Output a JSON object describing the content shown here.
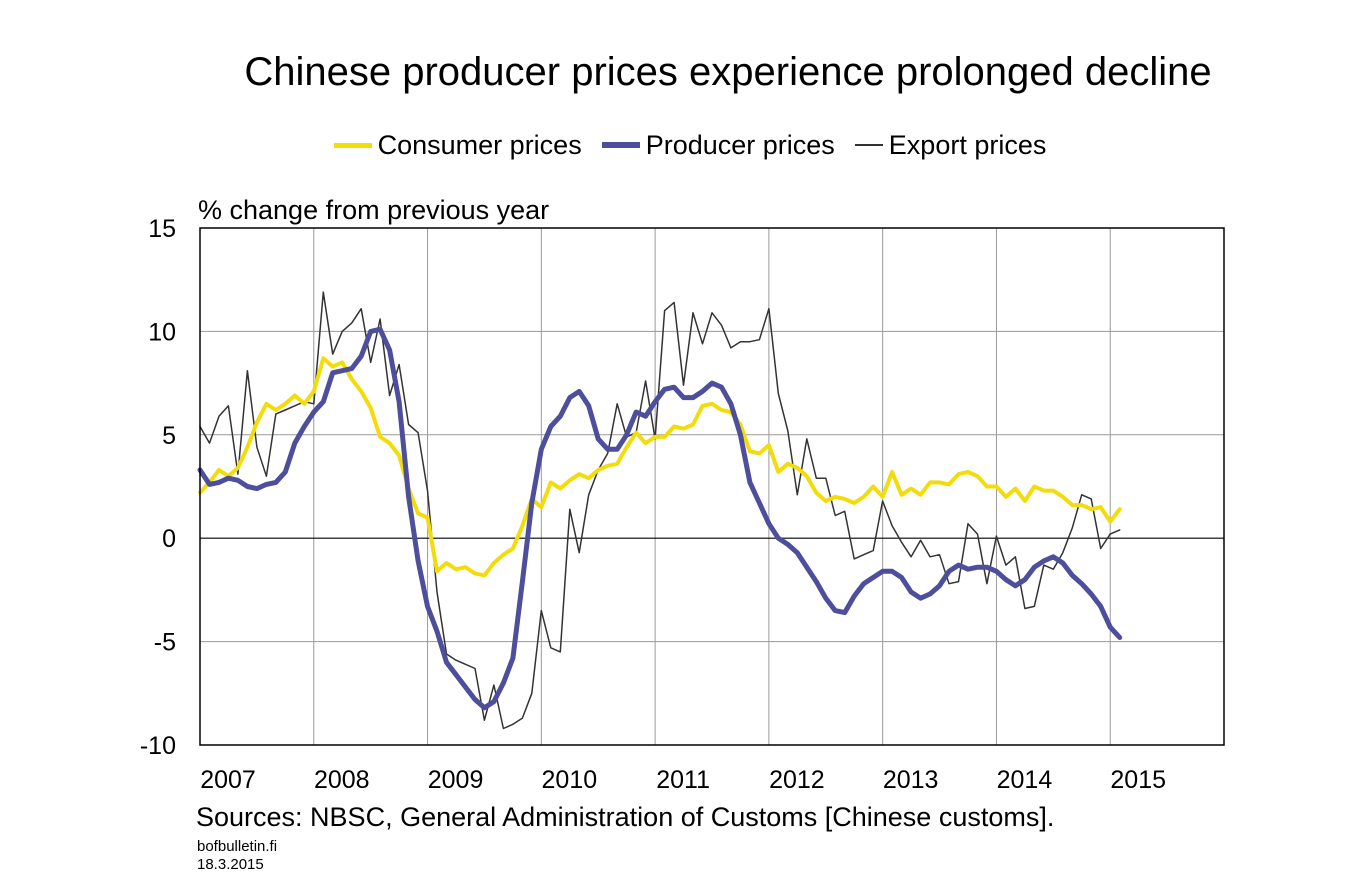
{
  "chart_data": {
    "type": "line",
    "title": "Chinese producer prices experience prolonged decline",
    "ylabel": "% change from previous year",
    "xlabel": "",
    "ylim": [
      -10,
      15
    ],
    "yticks": [
      "15",
      "10",
      "5",
      "0",
      "-5",
      "-10"
    ],
    "ytick_values": [
      15,
      10,
      5,
      0,
      -5,
      -10
    ],
    "xlim": [
      2007,
      2016
    ],
    "xticks": [
      "2007",
      "2008",
      "2009",
      "2010",
      "2011",
      "2012",
      "2013",
      "2014",
      "2015"
    ],
    "xtick_values": [
      2007,
      2008,
      2009,
      2010,
      2011,
      2012,
      2013,
      2014,
      2015
    ],
    "grid": true,
    "legend_position": "top-center",
    "series": [
      {
        "name": "Consumer prices",
        "color": "#f2dc0a",
        "width": 4,
        "x_start": 2007.0,
        "step": 0.08333,
        "values": [
          2.2,
          2.7,
          3.3,
          3.0,
          3.4,
          4.4,
          5.6,
          6.5,
          6.2,
          6.5,
          6.9,
          6.5,
          7.1,
          8.7,
          8.3,
          8.5,
          7.7,
          7.1,
          6.3,
          4.9,
          4.6,
          4.0,
          2.4,
          1.2,
          1.0,
          -1.6,
          -1.2,
          -1.5,
          -1.4,
          -1.7,
          -1.8,
          -1.2,
          -0.8,
          -0.5,
          0.6,
          1.9,
          1.5,
          2.7,
          2.4,
          2.8,
          3.1,
          2.9,
          3.3,
          3.5,
          3.6,
          4.4,
          5.1,
          4.6,
          4.9,
          4.9,
          5.4,
          5.3,
          5.5,
          6.4,
          6.5,
          6.2,
          6.1,
          5.5,
          4.2,
          4.1,
          4.5,
          3.2,
          3.6,
          3.4,
          3.0,
          2.2,
          1.8,
          2.0,
          1.9,
          1.7,
          2.0,
          2.5,
          2.0,
          3.2,
          2.1,
          2.4,
          2.1,
          2.7,
          2.7,
          2.6,
          3.1,
          3.2,
          3.0,
          2.5,
          2.5,
          2.0,
          2.4,
          1.8,
          2.5,
          2.3,
          2.3,
          2.0,
          1.6,
          1.6,
          1.4,
          1.5,
          0.8,
          1.4
        ]
      },
      {
        "name": "Producer prices",
        "color": "#4d4e9c",
        "width": 5,
        "x_start": 2007.0,
        "step": 0.08333,
        "values": [
          3.3,
          2.6,
          2.7,
          2.9,
          2.8,
          2.5,
          2.4,
          2.6,
          2.7,
          3.2,
          4.6,
          5.4,
          6.1,
          6.6,
          8.0,
          8.1,
          8.2,
          8.8,
          10.0,
          10.1,
          9.1,
          6.6,
          2.0,
          -1.1,
          -3.3,
          -4.5,
          -6.0,
          -6.6,
          -7.2,
          -7.8,
          -8.2,
          -7.9,
          -7.0,
          -5.8,
          -2.1,
          1.7,
          4.3,
          5.4,
          5.9,
          6.8,
          7.1,
          6.4,
          4.8,
          4.3,
          4.3,
          5.0,
          6.1,
          5.9,
          6.6,
          7.2,
          7.3,
          6.8,
          6.8,
          7.1,
          7.5,
          7.3,
          6.5,
          5.0,
          2.7,
          1.7,
          0.7,
          0.0,
          -0.3,
          -0.7,
          -1.4,
          -2.1,
          -2.9,
          -3.5,
          -3.6,
          -2.8,
          -2.2,
          -1.9,
          -1.6,
          -1.6,
          -1.9,
          -2.6,
          -2.9,
          -2.7,
          -2.3,
          -1.6,
          -1.3,
          -1.5,
          -1.4,
          -1.4,
          -1.6,
          -2.0,
          -2.3,
          -2.0,
          -1.4,
          -1.1,
          -0.9,
          -1.2,
          -1.8,
          -2.2,
          -2.7,
          -3.3,
          -4.3,
          -4.8
        ]
      },
      {
        "name": "Export prices",
        "color": "#333333",
        "width": 1.5,
        "x_start": 2007.0,
        "step": 0.08333,
        "values": [
          5.4,
          4.6,
          5.9,
          6.4,
          3.1,
          8.1,
          4.4,
          3.0,
          6.0,
          6.2,
          6.4,
          6.6,
          6.5,
          11.9,
          8.9,
          10.0,
          10.4,
          11.1,
          8.5,
          10.6,
          6.9,
          8.4,
          5.5,
          5.1,
          2.3,
          -2.6,
          -5.6,
          -5.9,
          -6.1,
          -6.3,
          -8.8,
          -7.1,
          -9.2,
          -9.0,
          -8.7,
          -7.5,
          -3.5,
          -5.3,
          -5.5,
          1.4,
          -0.7,
          2.1,
          3.3,
          4.1,
          6.5,
          4.9,
          5.1,
          7.6,
          4.8,
          11.0,
          11.4,
          7.4,
          10.9,
          9.4,
          10.9,
          10.3,
          9.2,
          9.5,
          9.5,
          9.6,
          11.1,
          7.0,
          5.2,
          2.1,
          4.8,
          2.9,
          2.9,
          1.1,
          1.3,
          -1.0,
          -0.8,
          -0.6,
          1.8,
          0.6,
          -0.2,
          -0.9,
          -0.1,
          -0.9,
          -0.8,
          -2.2,
          -2.1,
          0.7,
          0.2,
          -2.2,
          0.1,
          -1.3,
          -0.9,
          -3.4,
          -3.3,
          -1.3,
          -1.5,
          -0.7,
          0.5,
          2.1,
          1.9,
          -0.5,
          0.2,
          0.4
        ]
      }
    ]
  },
  "sources": "Sources: NBSC, General Administration of Customs [Chinese customs].",
  "site": "bofbulletin.fi",
  "date": "18.3.2015"
}
